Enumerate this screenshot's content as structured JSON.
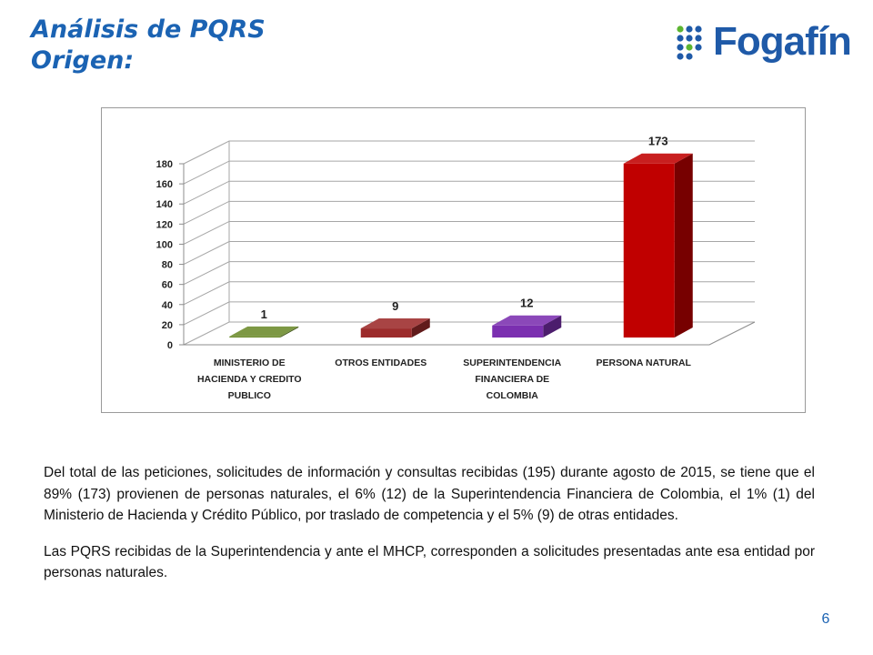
{
  "slide": {
    "title_line1": "Análisis de PQRS",
    "title_line2": "Origen:",
    "logo_text": "Fogafín",
    "paragraph1": "Del total de las peticiones, solicitudes de información y consultas recibidas (195) durante agosto de 2015, se tiene que el 89% (173) provienen de personas naturales, el 6% (12) de la Superintendencia Financiera de Colombia, el 1% (1) del Ministerio de Hacienda y Crédito Público, por traslado de competencia y el 5% (9) de otras entidades.",
    "paragraph2": "Las PQRS recibidas de la Superintendencia y ante el MHCP, corresponden a solicitudes presentadas ante esa entidad por personas naturales.",
    "page_number": "6"
  },
  "colors": {
    "title": "#1b63b3",
    "logo": "#1f5aa8",
    "logo_dots_blue": "#1f5aa8",
    "logo_dots_green": "#5cb531"
  },
  "icons": {
    "logo_mark": "fogafin-dots-icon"
  },
  "chart_data": {
    "type": "bar",
    "style": "3d-column",
    "categories": [
      [
        "MINISTERIO DE",
        "HACIENDA Y CREDITO",
        "PUBLICO"
      ],
      [
        "OTROS ENTIDADES"
      ],
      [
        "SUPERINTENDENCIA",
        "FINANCIERA DE",
        "COLOMBIA"
      ],
      [
        "PERSONA NATURAL"
      ]
    ],
    "values": [
      1,
      9,
      12,
      173
    ],
    "data_labels": [
      "1",
      "9",
      "12",
      "173"
    ],
    "bar_colors": [
      "#6b8a2a",
      "#9c2b2b",
      "#7b2fb0",
      "#c00000"
    ],
    "ylim": [
      0,
      180
    ],
    "yticks": [
      0,
      20,
      40,
      60,
      80,
      100,
      120,
      140,
      160,
      180
    ],
    "grid": true,
    "legend": "none",
    "title": "",
    "xlabel": "",
    "ylabel": ""
  }
}
